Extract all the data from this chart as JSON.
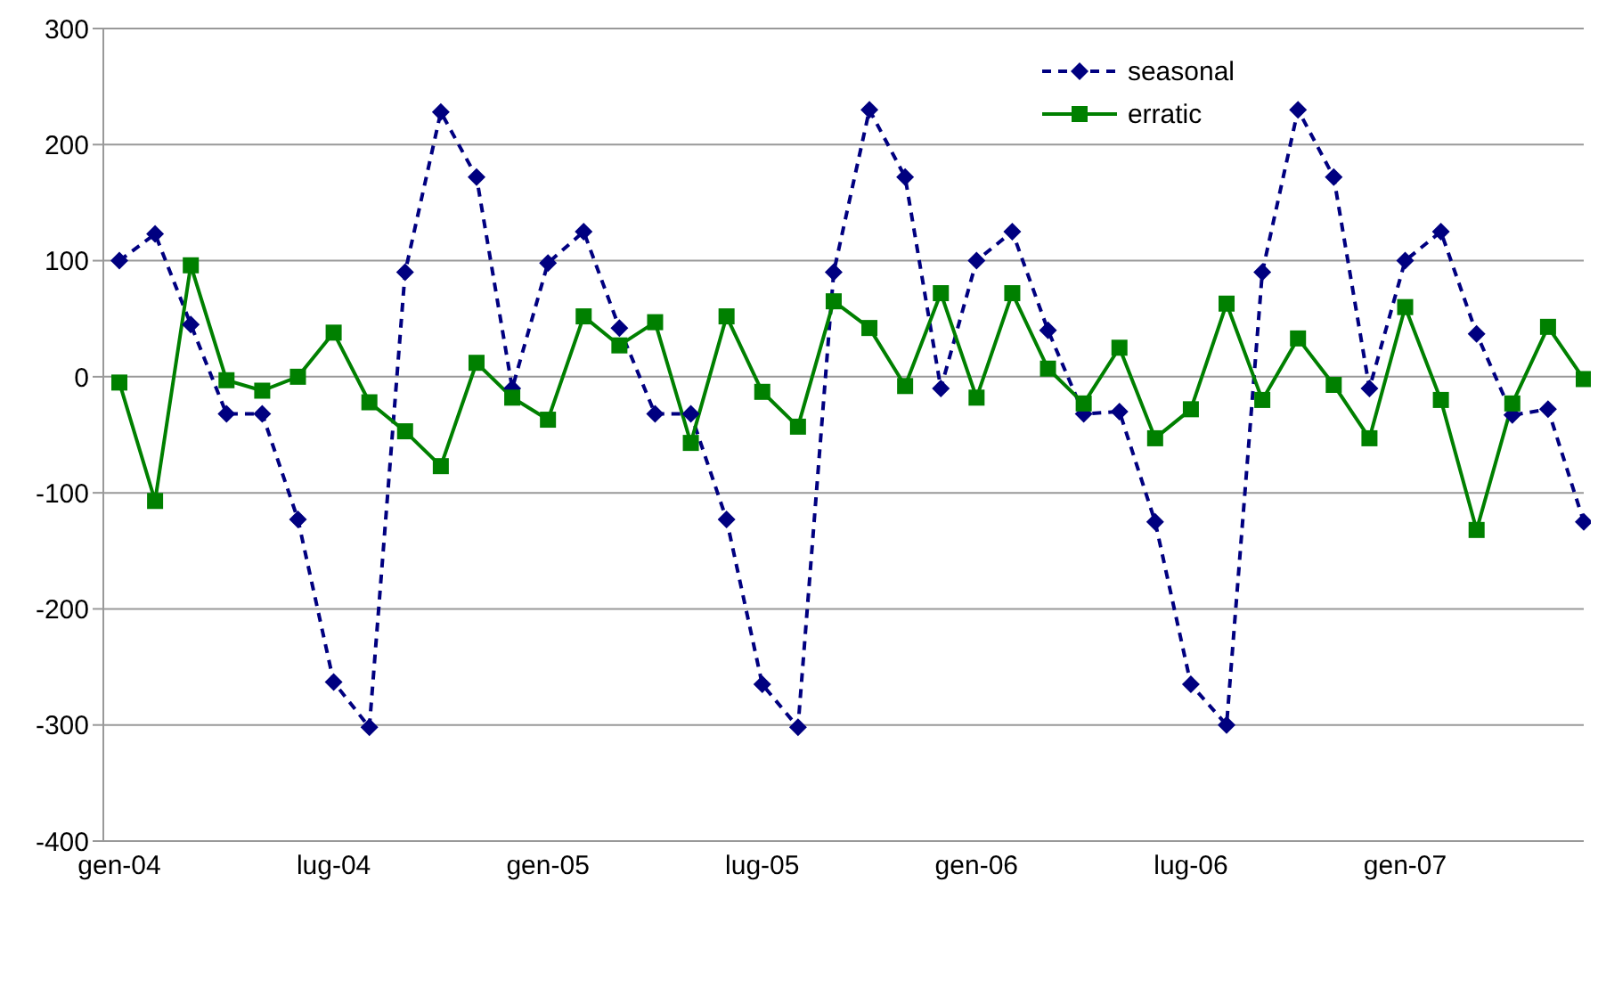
{
  "chart_data": {
    "type": "line",
    "categories": [
      "gen-04",
      null,
      null,
      null,
      null,
      null,
      "lug-04",
      null,
      null,
      null,
      null,
      null,
      "gen-05",
      null,
      null,
      null,
      null,
      null,
      "lug-05",
      null,
      null,
      null,
      null,
      null,
      "gen-06",
      null,
      null,
      null,
      null,
      null,
      "lug-06",
      null,
      null,
      null,
      null,
      null,
      "gen-07",
      null,
      null,
      null,
      null,
      null
    ],
    "series": [
      {
        "name": "seasonal",
        "color": "#000080",
        "marker": "diamond",
        "line_style": "dashed",
        "values": [
          100,
          123,
          45,
          -32,
          -32,
          -123,
          -263,
          -302,
          90,
          228,
          172,
          -10,
          98,
          125,
          42,
          -32,
          -32,
          -123,
          -265,
          -302,
          90,
          230,
          172,
          -10,
          100,
          125,
          40,
          -32,
          -30,
          -125,
          -265,
          -300,
          90,
          230,
          172,
          -10,
          100,
          125,
          37,
          -33,
          -28,
          -125
        ]
      },
      {
        "name": "erratic",
        "color": "#008000",
        "marker": "square",
        "line_style": "solid",
        "values": [
          -5,
          -107,
          96,
          -3,
          -12,
          0,
          38,
          -22,
          -47,
          -77,
          12,
          -18,
          -37,
          52,
          27,
          47,
          -57,
          52,
          -13,
          -43,
          65,
          42,
          -8,
          72,
          -18,
          72,
          7,
          -23,
          25,
          -53,
          -28,
          63,
          -20,
          33,
          -7,
          -53,
          60,
          -20,
          -132,
          -23,
          43,
          -2
        ]
      }
    ],
    "ylim": [
      -400,
      300
    ],
    "yticks": [
      -400,
      -300,
      -200,
      -100,
      0,
      100,
      200,
      300
    ],
    "grid": "y",
    "legend": "top right"
  }
}
